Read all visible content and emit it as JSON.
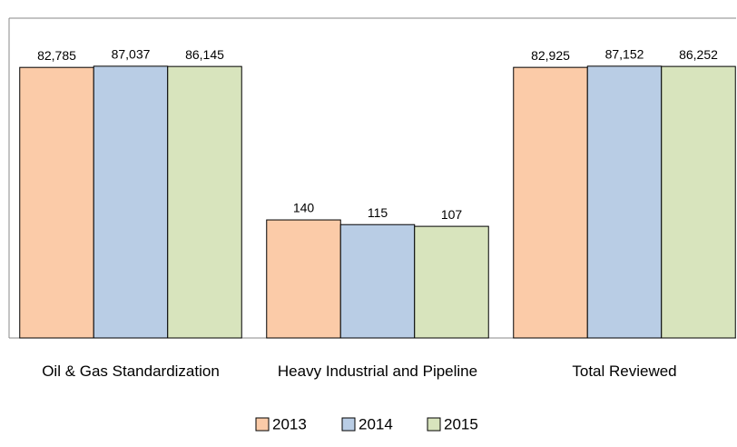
{
  "chart_data": {
    "type": "bar",
    "categories": [
      "Oil & Gas Standardization",
      "Heavy Industrial and Pipeline",
      "Total Reviewed"
    ],
    "series": [
      {
        "name": "2013",
        "color": "#fbcba8",
        "values": [
          82785,
          140,
          82925
        ],
        "value_labels": [
          "82,785",
          "140",
          "82,925"
        ]
      },
      {
        "name": "2014",
        "color": "#b9cde5",
        "values": [
          87037,
          115,
          87152
        ],
        "value_labels": [
          "87,037",
          "115",
          "87,152"
        ]
      },
      {
        "name": "2015",
        "color": "#d8e4bd",
        "values": [
          86145,
          107,
          86252
        ],
        "value_labels": [
          "86,145",
          "107",
          "86,252"
        ]
      }
    ],
    "log_scale": true,
    "ylim": [
      1,
      650000
    ]
  }
}
